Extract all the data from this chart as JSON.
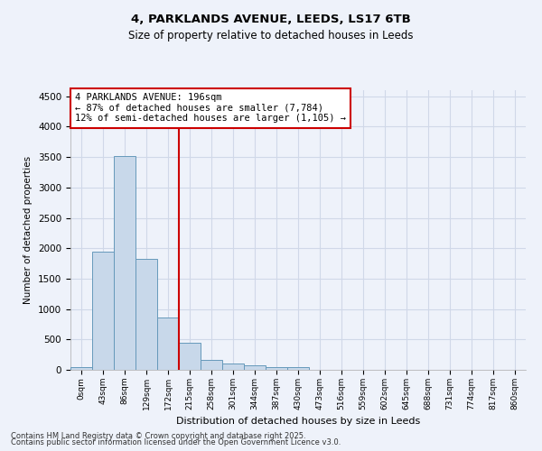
{
  "title1": "4, PARKLANDS AVENUE, LEEDS, LS17 6TB",
  "title2": "Size of property relative to detached houses in Leeds",
  "xlabel": "Distribution of detached houses by size in Leeds",
  "ylabel": "Number of detached properties",
  "bin_labels": [
    "0sqm",
    "43sqm",
    "86sqm",
    "129sqm",
    "172sqm",
    "215sqm",
    "258sqm",
    "301sqm",
    "344sqm",
    "387sqm",
    "430sqm",
    "473sqm",
    "516sqm",
    "559sqm",
    "602sqm",
    "645sqm",
    "688sqm",
    "731sqm",
    "774sqm",
    "817sqm",
    "860sqm"
  ],
  "bar_heights": [
    50,
    1950,
    3520,
    1820,
    860,
    450,
    170,
    100,
    70,
    50,
    50,
    0,
    0,
    0,
    0,
    0,
    0,
    0,
    0,
    0,
    0
  ],
  "bar_color": "#c8d8ea",
  "bar_edge_color": "#6699bb",
  "vline_x": 4.5,
  "vline_color": "#cc0000",
  "annotation_text": "4 PARKLANDS AVENUE: 196sqm\n← 87% of detached houses are smaller (7,784)\n12% of semi-detached houses are larger (1,105) →",
  "annotation_box_color": "#ffffff",
  "annotation_box_edge": "#cc0000",
  "ylim": [
    0,
    4600
  ],
  "yticks": [
    0,
    500,
    1000,
    1500,
    2000,
    2500,
    3000,
    3500,
    4000,
    4500
  ],
  "footer1": "Contains HM Land Registry data © Crown copyright and database right 2025.",
  "footer2": "Contains public sector information licensed under the Open Government Licence v3.0.",
  "bg_color": "#eef2fa",
  "grid_color": "#d0d8e8"
}
